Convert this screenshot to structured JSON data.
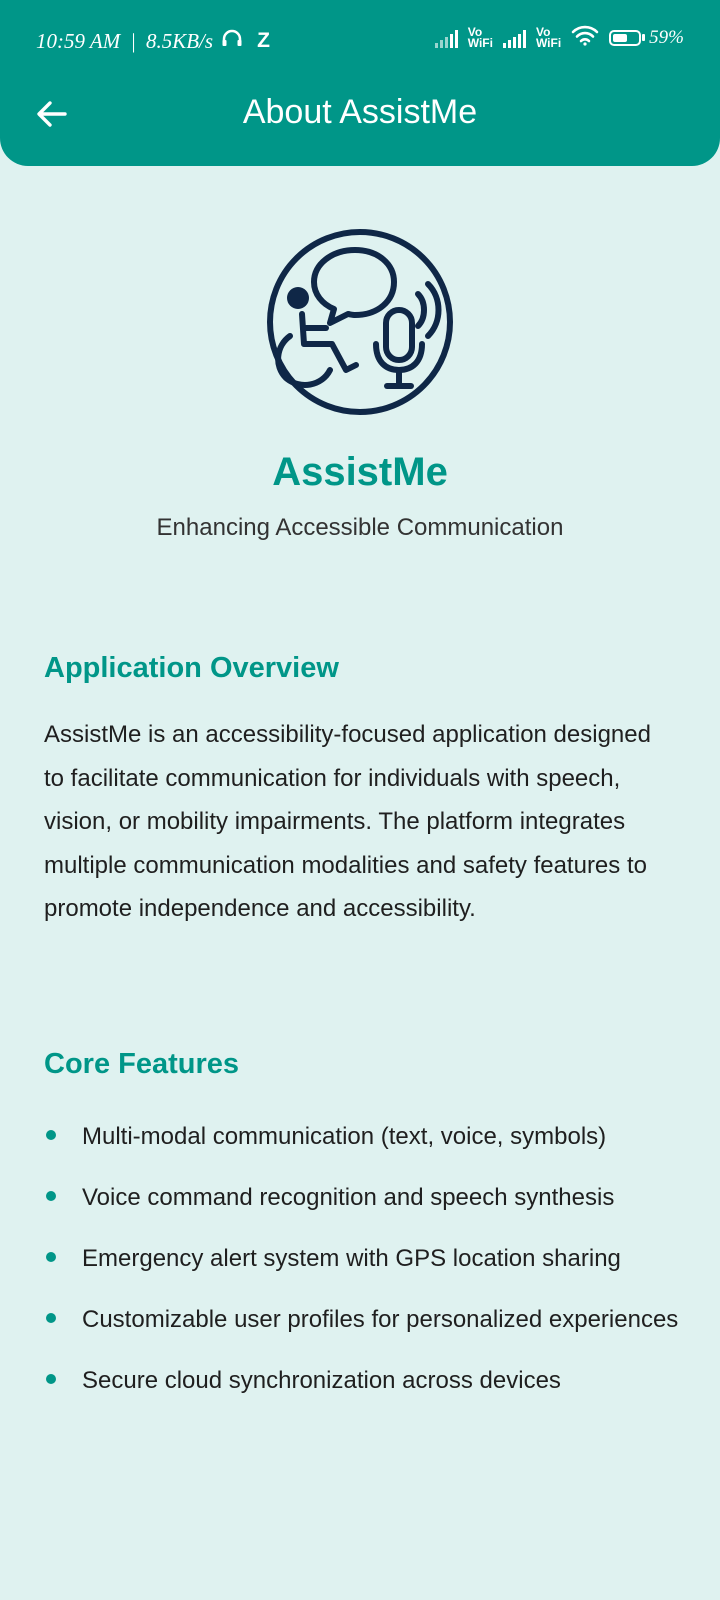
{
  "status_bar": {
    "time": "10:59 AM",
    "network_speed": "8.5KB/s",
    "notification_letter": "Z",
    "sim1_label_top": "Vo",
    "sim1_label_bottom": "WiFi",
    "sim2_label_top": "Vo",
    "sim2_label_bottom": "WiFi",
    "battery_percent": "59%",
    "battery_level": 0.59,
    "icons": [
      "headphones-icon",
      "signal-icon",
      "wifi-icon",
      "battery-icon"
    ]
  },
  "toolbar": {
    "title": "About AssistMe",
    "back_icon": "arrow-left-icon"
  },
  "hero": {
    "logo_icon": "wheelchair-speech-microphone-logo",
    "app_name": "AssistMe",
    "tagline": "Enhancing Accessible Communication"
  },
  "overview": {
    "title": "Application Overview",
    "text": "AssistMe is an accessibility-focused application designed to facilitate communication for individuals with speech, vision, or mobility impairments. The platform integrates multiple communication modalities and safety features to promote independence and accessibility."
  },
  "features": {
    "title": "Core Features",
    "items": [
      "Multi-modal communication (text, voice, symbols)",
      "Voice command recognition and speech synthesis",
      "Emergency alert system with GPS location sharing",
      "Customizable user profiles for personalized experiences",
      "Secure cloud synchronization across devices"
    ]
  },
  "colors": {
    "primary": "#009688",
    "background": "#dff2f0",
    "logo": "#0f2747",
    "text": "#1f1f1f"
  }
}
